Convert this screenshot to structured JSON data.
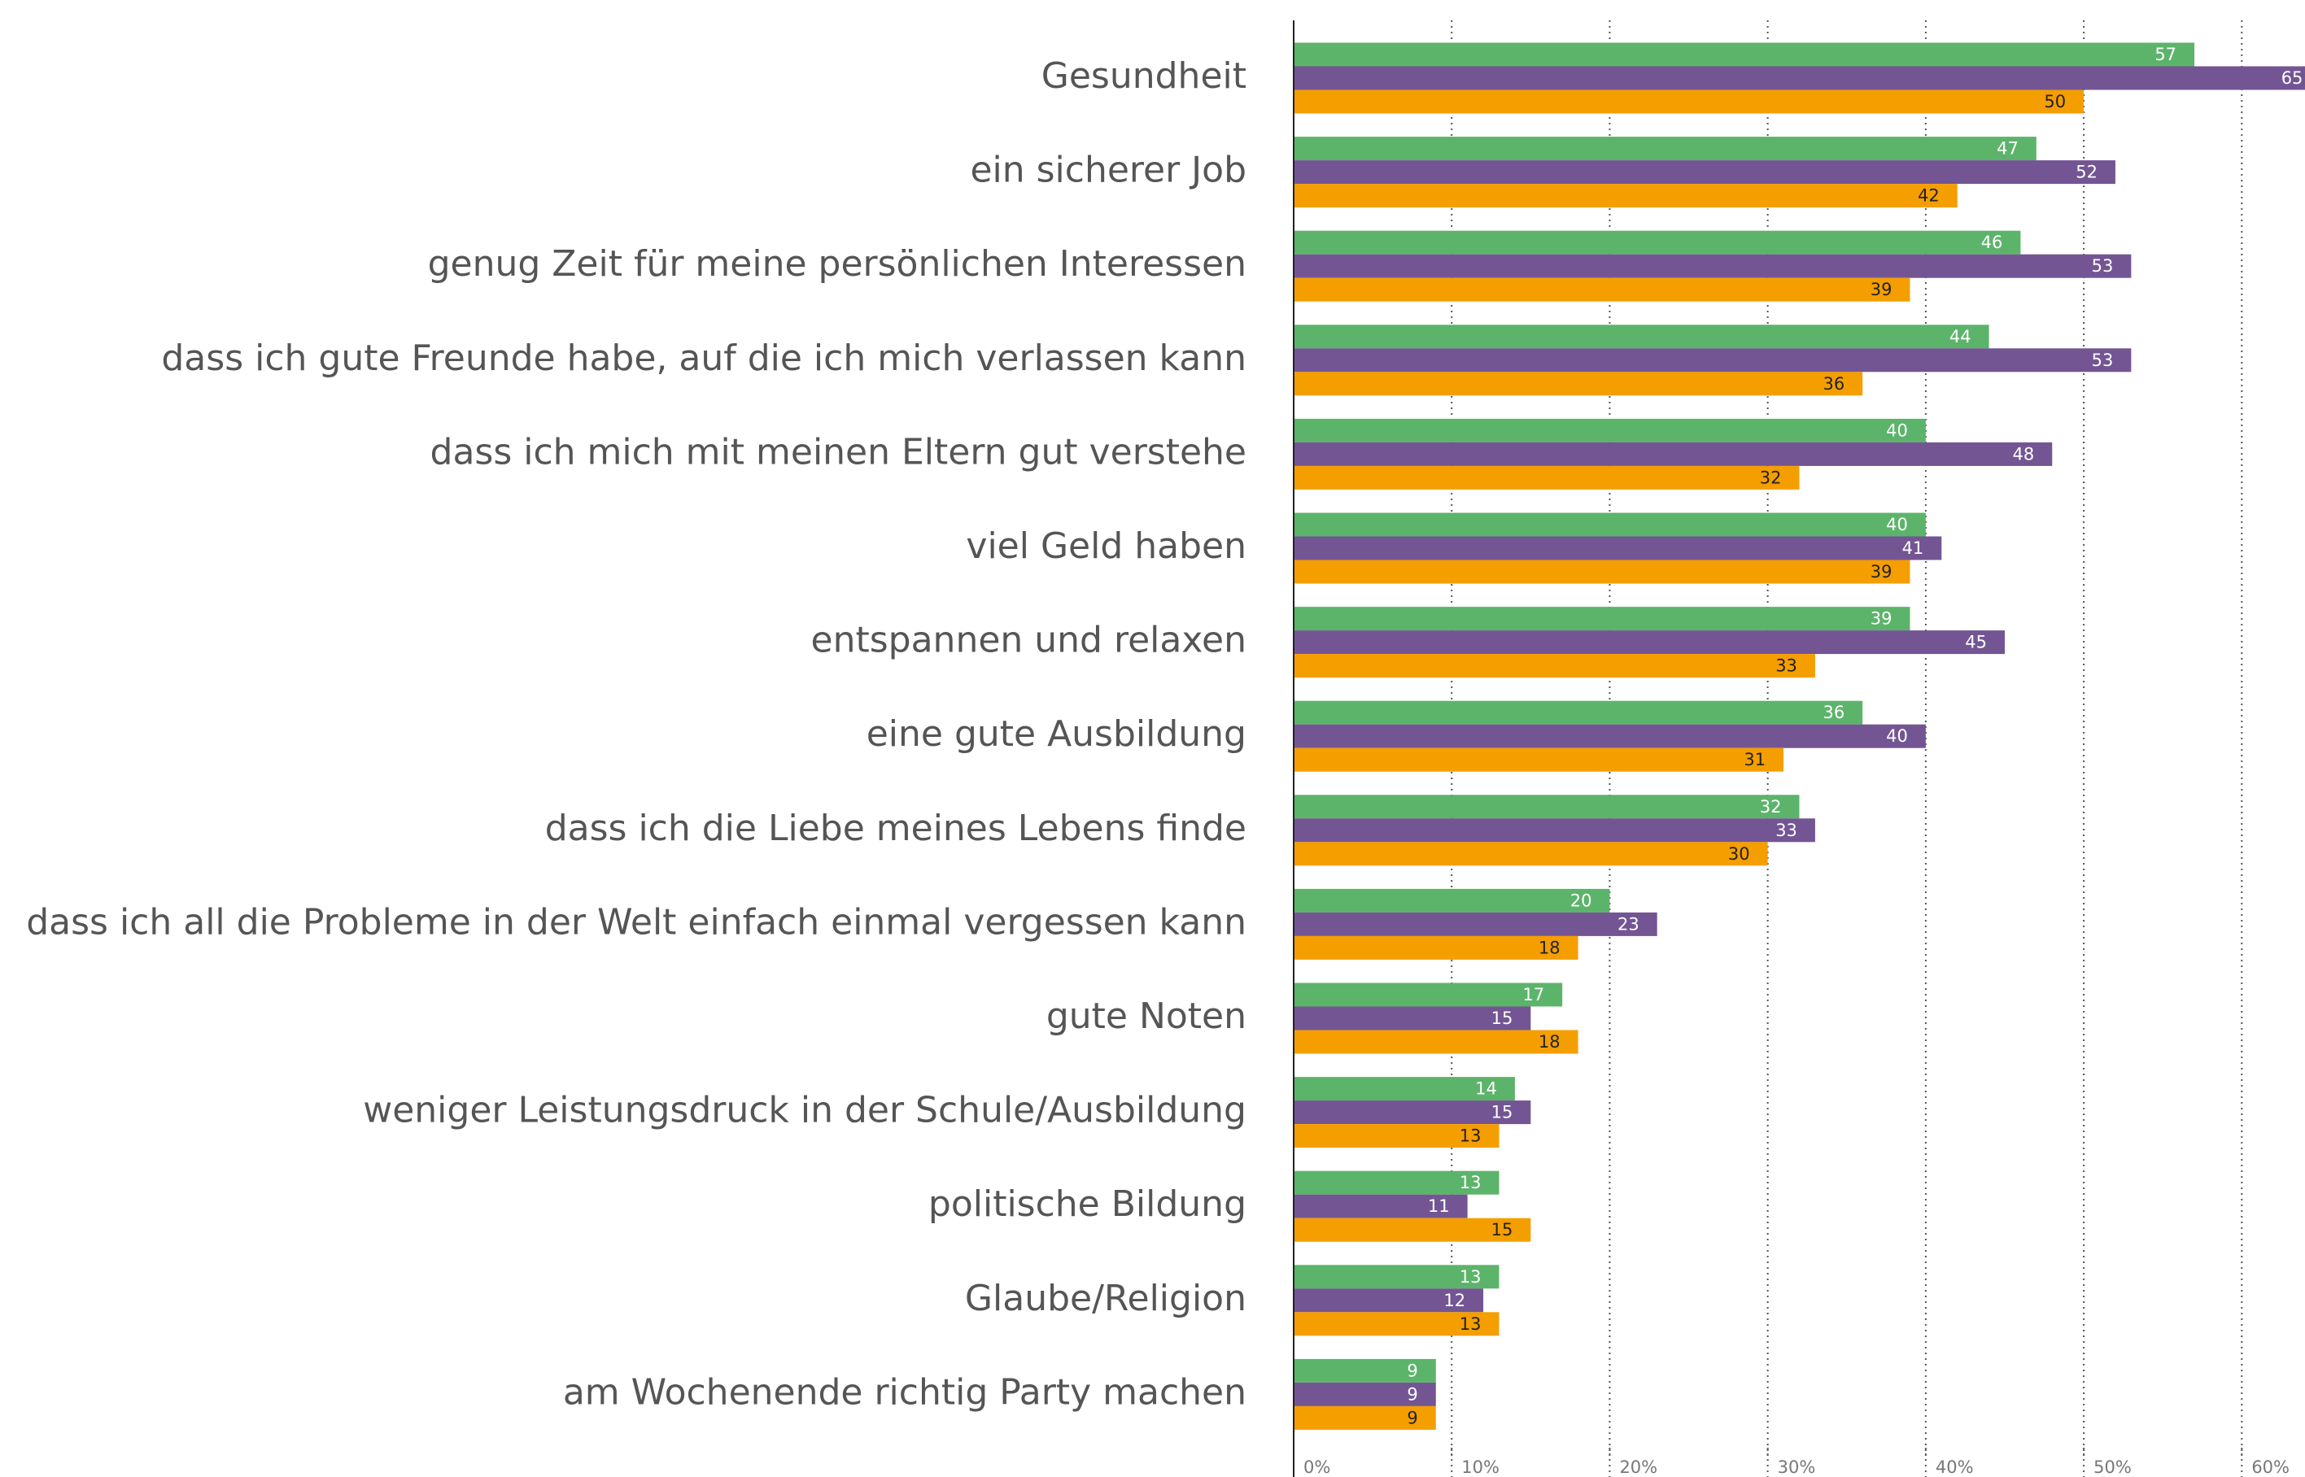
{
  "chart_data": {
    "type": "bar",
    "orientation": "horizontal",
    "categories": [
      "Gesundheit",
      "ein sicherer Job",
      "genug Zeit für meine persönlichen Interessen",
      "dass ich gute Freunde habe, auf die ich mich verlassen kann",
      "dass ich mich mit meinen Eltern gut verstehe",
      "viel Geld haben",
      "entspannen und relaxen",
      "eine gute Ausbildung",
      "dass ich die Liebe meines Lebens finde",
      "dass ich all die Probleme in der Welt einfach einmal vergessen kann",
      "gute Noten",
      "weniger Leistungsdruck in der Schule/Ausbildung",
      "politische Bildung",
      "Glaube/Religion",
      "am Wochenende richtig Party machen"
    ],
    "series": [
      {
        "color": "#5cb46a",
        "values": [
          57,
          47,
          46,
          44,
          40,
          40,
          39,
          36,
          32,
          20,
          17,
          14,
          13,
          13,
          9
        ]
      },
      {
        "color": "#735594",
        "values": [
          65,
          52,
          53,
          53,
          48,
          41,
          45,
          40,
          33,
          23,
          15,
          15,
          11,
          12,
          9
        ]
      },
      {
        "color": "#f59e00",
        "values": [
          50,
          42,
          39,
          36,
          32,
          39,
          33,
          31,
          30,
          18,
          18,
          13,
          15,
          13,
          9
        ]
      }
    ],
    "xlim": [
      0,
      64
    ],
    "xticks": [
      {
        "value": 0,
        "label": "0%"
      },
      {
        "value": 10,
        "label": "10%"
      },
      {
        "value": 20,
        "label": "20%"
      },
      {
        "value": 30,
        "label": "30%"
      },
      {
        "value": 40,
        "label": "40%"
      },
      {
        "value": 50,
        "label": "50%"
      },
      {
        "value": 60,
        "label": "60%"
      }
    ],
    "grid": true
  }
}
